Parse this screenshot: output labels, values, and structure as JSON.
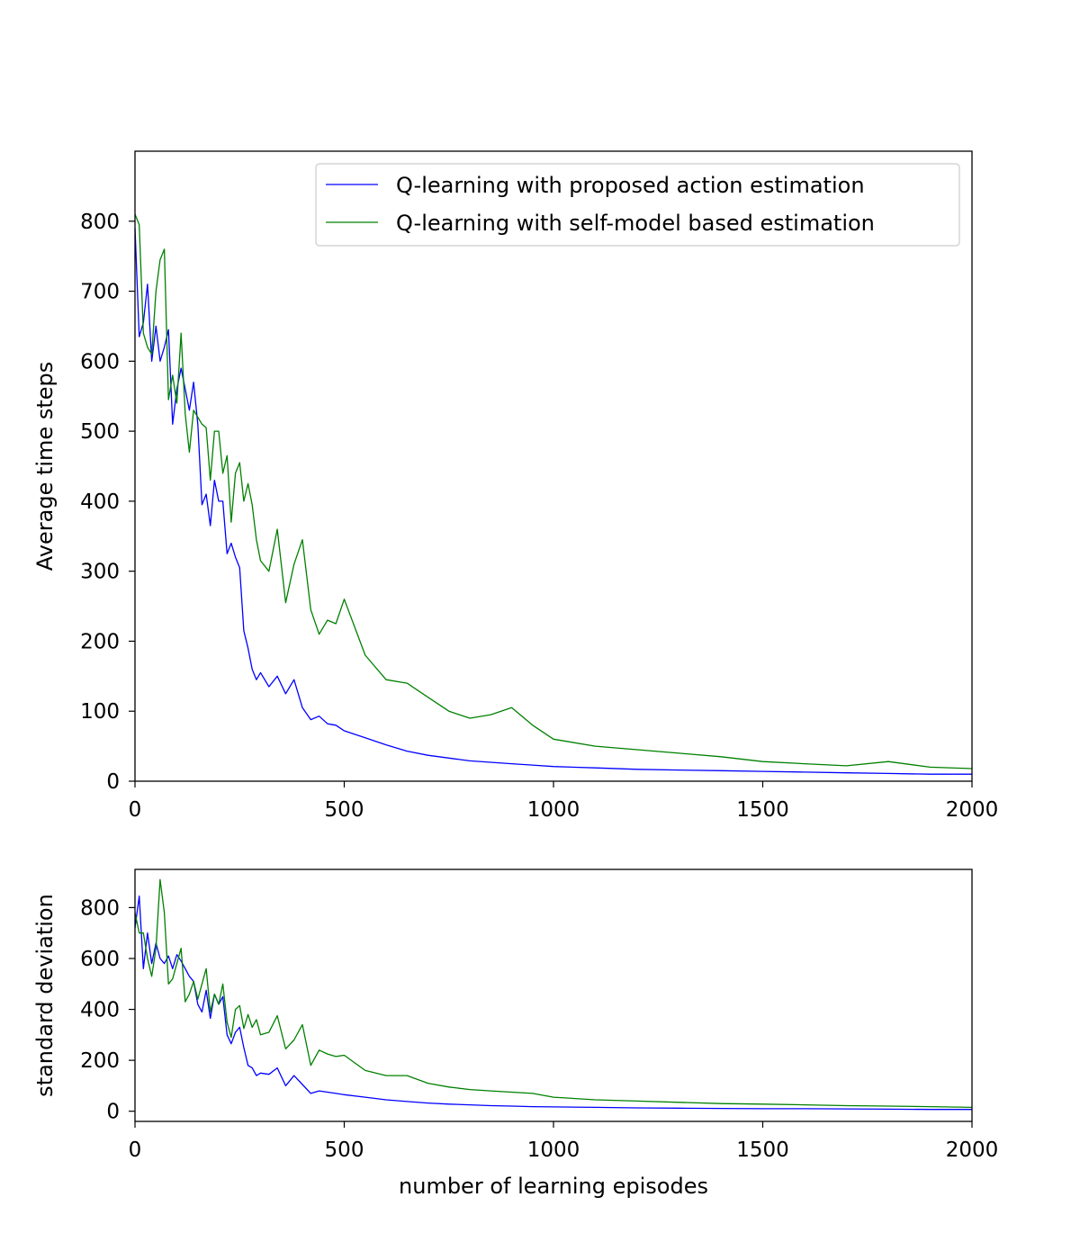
{
  "chart_data": [
    {
      "type": "line",
      "title": "",
      "xlabel": "",
      "ylabel": "Average time steps",
      "xlim": [
        0,
        2000
      ],
      "ylim": [
        0,
        900
      ],
      "xticks": [
        "0",
        "500",
        "1000",
        "1500",
        "2000"
      ],
      "yticks": [
        "0",
        "100",
        "200",
        "300",
        "400",
        "500",
        "600",
        "700",
        "800"
      ],
      "legend": "top-right",
      "series": [
        {
          "name": "Q-learning with proposed action estimation",
          "color": "#0000ff",
          "x": [
            0,
            10,
            20,
            30,
            40,
            50,
            60,
            70,
            80,
            90,
            100,
            110,
            120,
            130,
            140,
            150,
            160,
            170,
            180,
            190,
            200,
            210,
            220,
            230,
            240,
            250,
            260,
            270,
            280,
            290,
            300,
            320,
            340,
            360,
            380,
            400,
            420,
            440,
            460,
            480,
            500,
            550,
            600,
            650,
            700,
            750,
            800,
            850,
            900,
            950,
            1000,
            1100,
            1200,
            1300,
            1400,
            1500,
            1600,
            1700,
            1800,
            1900,
            2000
          ],
          "y": [
            790,
            635,
            655,
            710,
            600,
            650,
            600,
            620,
            645,
            510,
            560,
            590,
            560,
            530,
            570,
            510,
            395,
            410,
            365,
            430,
            400,
            400,
            325,
            340,
            320,
            305,
            215,
            190,
            160,
            145,
            155,
            135,
            150,
            125,
            145,
            105,
            88,
            93,
            82,
            80,
            72,
            62,
            52,
            43,
            37,
            33,
            29,
            27,
            25,
            23,
            21,
            19,
            17,
            16,
            15,
            14,
            13,
            12,
            11,
            10,
            10
          ]
        },
        {
          "name": "Q-learning with self-model based estimation",
          "color": "#008000",
          "x": [
            0,
            10,
            20,
            30,
            40,
            50,
            60,
            70,
            80,
            90,
            100,
            110,
            120,
            130,
            140,
            150,
            160,
            170,
            180,
            190,
            200,
            210,
            220,
            230,
            240,
            250,
            260,
            270,
            280,
            290,
            300,
            320,
            340,
            360,
            380,
            400,
            420,
            440,
            460,
            480,
            500,
            550,
            600,
            650,
            700,
            750,
            800,
            850,
            900,
            950,
            1000,
            1100,
            1200,
            1300,
            1400,
            1500,
            1600,
            1700,
            1800,
            1900,
            2000
          ],
          "y": [
            810,
            795,
            640,
            620,
            610,
            700,
            745,
            760,
            545,
            580,
            540,
            640,
            525,
            470,
            530,
            520,
            510,
            505,
            430,
            500,
            500,
            440,
            465,
            370,
            440,
            455,
            400,
            425,
            395,
            345,
            315,
            300,
            360,
            255,
            310,
            345,
            245,
            210,
            230,
            225,
            260,
            180,
            145,
            140,
            120,
            100,
            90,
            95,
            105,
            80,
            60,
            50,
            45,
            40,
            35,
            28,
            25,
            22,
            28,
            20,
            18
          ]
        }
      ]
    },
    {
      "type": "line",
      "title": "",
      "xlabel": "number of learning episodes",
      "ylabel": "standard deviation",
      "xlim": [
        0,
        2000
      ],
      "ylim": [
        -40,
        950
      ],
      "xticks": [
        "0",
        "500",
        "1000",
        "1500",
        "2000"
      ],
      "yticks": [
        "0",
        "200",
        "400",
        "600",
        "800"
      ],
      "series": [
        {
          "name": "Q-learning with proposed action estimation",
          "color": "#0000ff",
          "x": [
            0,
            10,
            20,
            30,
            40,
            50,
            60,
            70,
            80,
            90,
            100,
            110,
            120,
            130,
            140,
            150,
            160,
            170,
            180,
            190,
            200,
            210,
            220,
            230,
            240,
            250,
            260,
            270,
            280,
            290,
            300,
            320,
            340,
            360,
            380,
            400,
            420,
            440,
            460,
            480,
            500,
            550,
            600,
            650,
            700,
            750,
            800,
            850,
            900,
            950,
            1000,
            1100,
            1200,
            1300,
            1400,
            1500,
            1600,
            1700,
            1800,
            1900,
            2000
          ],
          "y": [
            720,
            845,
            560,
            700,
            580,
            660,
            600,
            580,
            610,
            560,
            615,
            590,
            560,
            530,
            510,
            420,
            390,
            475,
            365,
            460,
            420,
            450,
            300,
            265,
            310,
            330,
            250,
            180,
            170,
            140,
            150,
            145,
            170,
            100,
            140,
            105,
            70,
            80,
            75,
            70,
            65,
            55,
            45,
            38,
            32,
            28,
            25,
            22,
            20,
            18,
            17,
            15,
            13,
            12,
            11,
            10,
            10,
            9,
            8,
            7,
            7
          ]
        },
        {
          "name": "Q-learning with self-model based estimation",
          "color": "#008000",
          "x": [
            0,
            10,
            20,
            30,
            40,
            50,
            60,
            70,
            80,
            90,
            100,
            110,
            120,
            130,
            140,
            150,
            160,
            170,
            180,
            190,
            200,
            210,
            220,
            230,
            240,
            250,
            260,
            270,
            280,
            290,
            300,
            320,
            340,
            360,
            380,
            400,
            420,
            440,
            460,
            480,
            500,
            550,
            600,
            650,
            700,
            750,
            800,
            850,
            900,
            950,
            1000,
            1100,
            1200,
            1300,
            1400,
            1500,
            1600,
            1700,
            1800,
            1900,
            2000
          ],
          "y": [
            780,
            700,
            700,
            600,
            530,
            640,
            910,
            780,
            500,
            520,
            580,
            640,
            430,
            460,
            510,
            440,
            500,
            560,
            390,
            460,
            420,
            500,
            350,
            290,
            400,
            415,
            325,
            380,
            330,
            360,
            300,
            310,
            375,
            245,
            280,
            340,
            180,
            240,
            225,
            215,
            220,
            160,
            140,
            140,
            110,
            95,
            85,
            80,
            75,
            70,
            55,
            45,
            40,
            35,
            30,
            28,
            25,
            22,
            20,
            18,
            15
          ]
        }
      ]
    }
  ]
}
